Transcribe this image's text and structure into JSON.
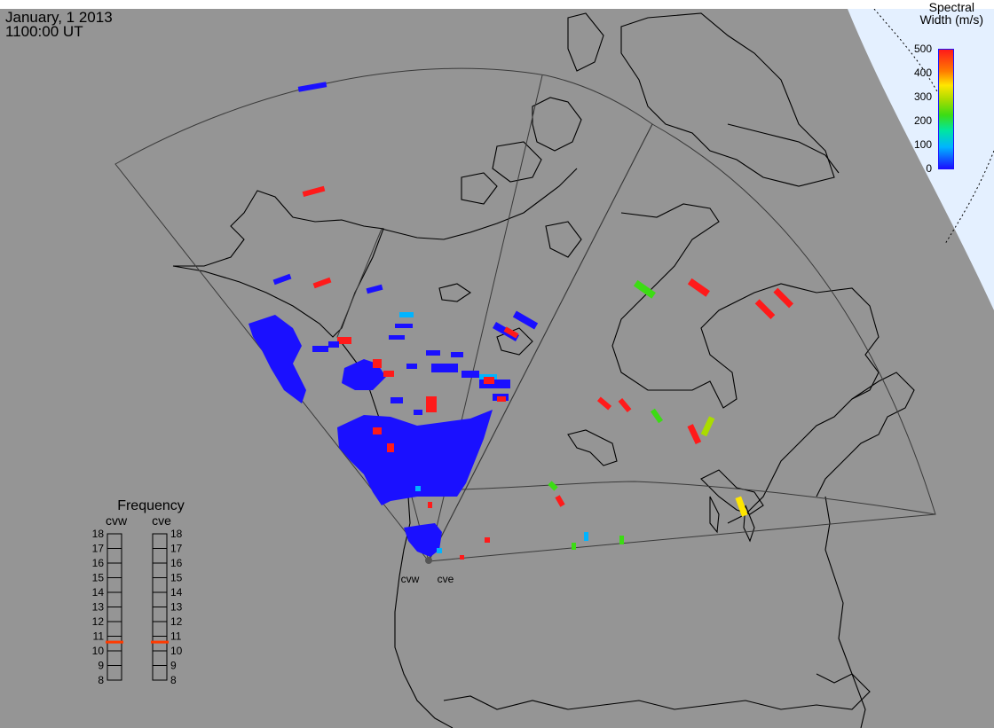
{
  "header": {
    "date": "January, 1 2013",
    "time": "1100:00 UT"
  },
  "colorbar": {
    "title_line1": "Spectral",
    "title_line2": "Width (m/s)",
    "ticks": [
      "0",
      "100",
      "200",
      "300",
      "400",
      "500"
    ],
    "range": [
      0,
      500
    ],
    "colors": [
      "#1a10ff",
      "#00b4ff",
      "#00e6a0",
      "#3cdc14",
      "#aadc00",
      "#ffe600",
      "#ff7a00",
      "#ff1a1a"
    ]
  },
  "frequency": {
    "title": "Frequency",
    "radars": [
      "cvw",
      "cve"
    ],
    "ticks": [
      "18",
      "17",
      "16",
      "15",
      "14",
      "13",
      "12",
      "11",
      "10",
      "9",
      "8"
    ],
    "range": [
      8,
      18
    ],
    "values": [
      10.6,
      10.6
    ],
    "marker_color": "#ff3a00"
  },
  "radar_site": {
    "labels": [
      "cvw",
      "cve"
    ]
  },
  "colors": {
    "background": "#959595",
    "land": "#959595",
    "ocean_zone": "#e4f0ff",
    "coast": "#000000",
    "fov": "#3a3a3a"
  }
}
